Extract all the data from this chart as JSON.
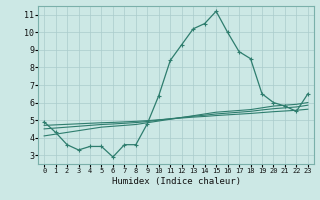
{
  "xlabel": "Humidex (Indice chaleur)",
  "bg_color": "#cce8e5",
  "grid_color": "#aacccc",
  "line_color": "#2e7d6e",
  "xlim": [
    -0.5,
    23.5
  ],
  "ylim": [
    2.5,
    11.5
  ],
  "xticks": [
    0,
    1,
    2,
    3,
    4,
    5,
    6,
    7,
    8,
    9,
    10,
    11,
    12,
    13,
    14,
    15,
    16,
    17,
    18,
    19,
    20,
    21,
    22,
    23
  ],
  "yticks": [
    3,
    4,
    5,
    6,
    7,
    8,
    9,
    10,
    11
  ],
  "main_series": [
    4.9,
    4.3,
    3.6,
    3.3,
    3.5,
    3.5,
    2.9,
    3.6,
    3.6,
    4.8,
    6.4,
    8.4,
    9.3,
    10.2,
    10.5,
    11.2,
    10.0,
    8.9,
    8.5,
    6.5,
    6.0,
    5.8,
    5.5,
    6.5
  ],
  "trend1": [
    4.1,
    4.2,
    4.3,
    4.4,
    4.5,
    4.6,
    4.65,
    4.7,
    4.75,
    4.85,
    4.95,
    5.05,
    5.15,
    5.25,
    5.35,
    5.45,
    5.5,
    5.55,
    5.6,
    5.7,
    5.8,
    5.85,
    5.9,
    6.0
  ],
  "trend2": [
    4.5,
    4.55,
    4.6,
    4.65,
    4.7,
    4.75,
    4.78,
    4.82,
    4.86,
    4.92,
    5.0,
    5.08,
    5.15,
    5.22,
    5.28,
    5.35,
    5.4,
    5.45,
    5.5,
    5.58,
    5.65,
    5.7,
    5.75,
    5.85
  ],
  "trend3": [
    4.7,
    4.73,
    4.76,
    4.79,
    4.82,
    4.85,
    4.87,
    4.9,
    4.93,
    4.97,
    5.02,
    5.07,
    5.12,
    5.17,
    5.21,
    5.26,
    5.3,
    5.34,
    5.38,
    5.43,
    5.48,
    5.52,
    5.56,
    5.62
  ]
}
